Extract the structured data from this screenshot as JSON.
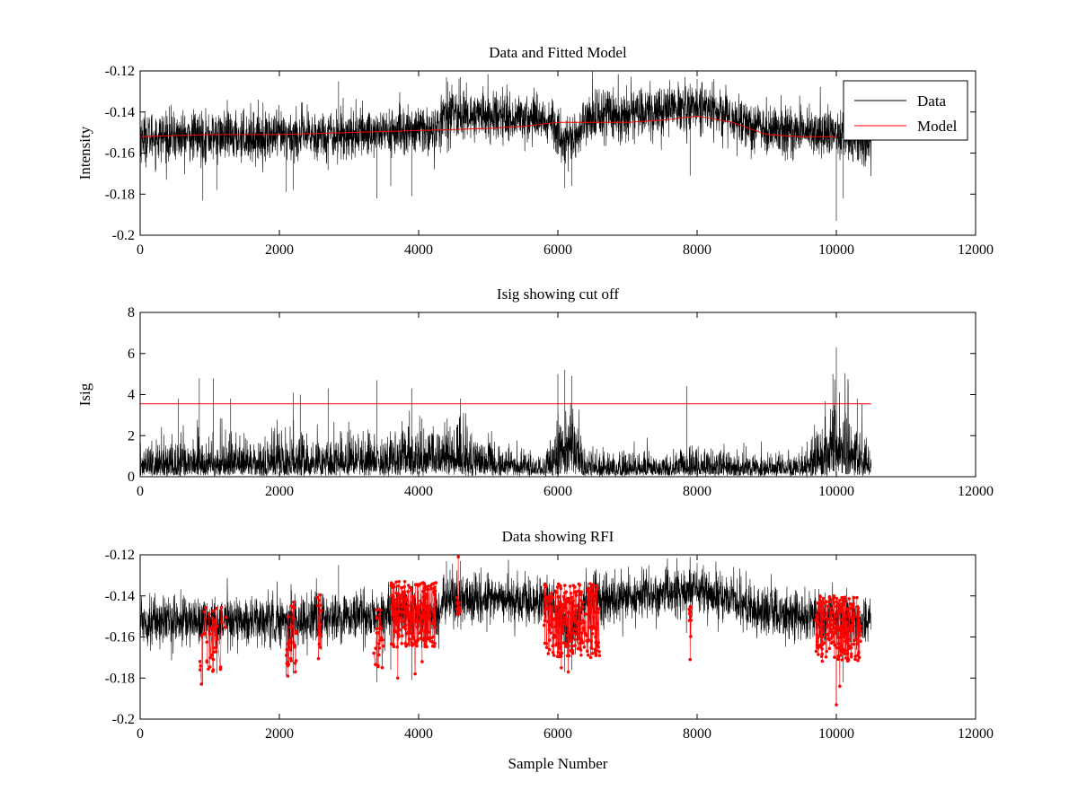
{
  "chart_data": [
    {
      "type": "line",
      "title": "Data and Fitted Model",
      "xlabel": "",
      "ylabel": "Intensity",
      "xlim": [
        0,
        12000
      ],
      "ylim": [
        -0.2,
        -0.12
      ],
      "xticks": [
        0,
        2000,
        4000,
        6000,
        8000,
        10000,
        12000
      ],
      "yticks": [
        -0.2,
        -0.18,
        -0.16,
        -0.14,
        -0.12
      ],
      "xtick_labels": [
        "0",
        "2000",
        "4000",
        "6000",
        "8000",
        "10000",
        "12000"
      ],
      "ytick_labels": [
        "-0.2",
        "-0.18",
        "-0.16",
        "-0.14",
        "-0.12"
      ],
      "legend": {
        "position": "top-right",
        "entries": [
          "Data",
          "Model"
        ]
      },
      "series": [
        {
          "name": "Data",
          "color": "#000000",
          "kind": "noisy",
          "x_range": [
            0,
            10500
          ],
          "baseline": [
            [
              0,
              -0.152
            ],
            [
              2000,
              -0.152
            ],
            [
              4000,
              -0.149
            ],
            [
              4300,
              -0.149
            ],
            [
              4350,
              -0.141
            ],
            [
              5800,
              -0.143
            ],
            [
              6000,
              -0.147
            ],
            [
              6100,
              -0.156
            ],
            [
              6250,
              -0.154
            ],
            [
              6400,
              -0.142
            ],
            [
              7000,
              -0.141
            ],
            [
              8000,
              -0.137
            ],
            [
              9000,
              -0.148
            ],
            [
              10500,
              -0.153
            ]
          ],
          "noise": 0.006,
          "spikes": [
            [
              900,
              -0.183
            ],
            [
              1100,
              -0.178
            ],
            [
              2100,
              -0.179
            ],
            [
              2200,
              -0.178
            ],
            [
              2850,
              -0.125
            ],
            [
              3400,
              -0.182
            ],
            [
              3600,
              -0.176
            ],
            [
              3900,
              -0.181
            ],
            [
              4400,
              -0.123
            ],
            [
              4600,
              -0.123
            ],
            [
              6100,
              -0.177
            ],
            [
              6200,
              -0.176
            ],
            [
              7900,
              -0.171
            ],
            [
              8000,
              -0.124
            ],
            [
              10000,
              -0.193
            ],
            [
              10100,
              -0.182
            ]
          ]
        },
        {
          "name": "Model",
          "color": "#ff0000",
          "kind": "line",
          "x": [
            0,
            1000,
            2000,
            3000,
            4000,
            5000,
            5500,
            6000,
            6500,
            7000,
            7500,
            8000,
            8500,
            9000,
            9500,
            10000
          ],
          "y": [
            -0.152,
            -0.151,
            -0.151,
            -0.15,
            -0.149,
            -0.148,
            -0.147,
            -0.145,
            -0.145,
            -0.145,
            -0.144,
            -0.142,
            -0.145,
            -0.151,
            -0.152,
            -0.152
          ]
        }
      ]
    },
    {
      "type": "line",
      "title": "Isig showing cut off",
      "xlabel": "",
      "ylabel": "Isig",
      "xlim": [
        0,
        12000
      ],
      "ylim": [
        0,
        8
      ],
      "xticks": [
        0,
        2000,
        4000,
        6000,
        8000,
        10000,
        12000
      ],
      "yticks": [
        0,
        2,
        4,
        6,
        8
      ],
      "xtick_labels": [
        "0",
        "2000",
        "4000",
        "6000",
        "8000",
        "10000",
        "12000"
      ],
      "ytick_labels": [
        "0",
        "2",
        "4",
        "6",
        "8"
      ],
      "series": [
        {
          "name": "Isig",
          "color": "#000000",
          "kind": "noisy-positive",
          "x_range": [
            0,
            10500
          ],
          "level": [
            [
              0,
              0.8
            ],
            [
              1000,
              1.0
            ],
            [
              3000,
              1.0
            ],
            [
              4500,
              1.4
            ],
            [
              5000,
              1.0
            ],
            [
              5800,
              0.6
            ],
            [
              6000,
              2.0
            ],
            [
              6200,
              2.0
            ],
            [
              6400,
              0.6
            ],
            [
              8000,
              0.7
            ],
            [
              9500,
              0.6
            ],
            [
              9900,
              1.8
            ],
            [
              10100,
              1.8
            ],
            [
              10500,
              0.7
            ]
          ],
          "spikes": [
            [
              550,
              3.8
            ],
            [
              850,
              4.8
            ],
            [
              1050,
              4.8
            ],
            [
              1300,
              3.8
            ],
            [
              2200,
              4.1
            ],
            [
              2300,
              4.0
            ],
            [
              2700,
              4.3
            ],
            [
              3400,
              4.7
            ],
            [
              3900,
              4.3
            ],
            [
              4600,
              3.8
            ],
            [
              6000,
              5.0
            ],
            [
              6100,
              5.2
            ],
            [
              6200,
              4.9
            ],
            [
              7850,
              4.4
            ],
            [
              9950,
              5.0
            ],
            [
              10000,
              6.3
            ],
            [
              10300,
              3.8
            ]
          ]
        },
        {
          "name": "Cut off",
          "color": "#ff0000",
          "kind": "line",
          "x": [
            0,
            10500
          ],
          "y": [
            3.55,
            3.55
          ]
        }
      ]
    },
    {
      "type": "scatter",
      "title": "Data showing RFI",
      "xlabel": "Sample Number",
      "ylabel": "",
      "xlim": [
        0,
        12000
      ],
      "ylim": [
        -0.2,
        -0.12
      ],
      "xticks": [
        0,
        2000,
        4000,
        6000,
        8000,
        10000,
        12000
      ],
      "yticks": [
        -0.2,
        -0.18,
        -0.16,
        -0.14,
        -0.12
      ],
      "xtick_labels": [
        "0",
        "2000",
        "4000",
        "6000",
        "8000",
        "10000",
        "12000"
      ],
      "ytick_labels": [
        "-0.2",
        "-0.18",
        "-0.16",
        "-0.14",
        "-0.12"
      ],
      "series": [
        {
          "name": "Data",
          "color": "#000000",
          "kind": "noisy",
          "x_range": [
            0,
            10500
          ],
          "baseline": [
            [
              0,
              -0.152
            ],
            [
              2000,
              -0.152
            ],
            [
              4000,
              -0.149
            ],
            [
              4300,
              -0.149
            ],
            [
              4350,
              -0.141
            ],
            [
              5800,
              -0.143
            ],
            [
              6000,
              -0.147
            ],
            [
              6100,
              -0.156
            ],
            [
              6250,
              -0.154
            ],
            [
              6400,
              -0.142
            ],
            [
              7000,
              -0.141
            ],
            [
              8000,
              -0.137
            ],
            [
              9000,
              -0.148
            ],
            [
              10500,
              -0.153
            ]
          ],
          "noise": 0.006,
          "spikes": [
            [
              900,
              -0.183
            ],
            [
              1100,
              -0.178
            ],
            [
              2100,
              -0.179
            ],
            [
              2200,
              -0.178
            ],
            [
              2850,
              -0.125
            ],
            [
              3400,
              -0.182
            ],
            [
              3600,
              -0.176
            ],
            [
              3900,
              -0.181
            ],
            [
              4400,
              -0.123
            ],
            [
              4600,
              -0.123
            ],
            [
              6100,
              -0.177
            ],
            [
              6200,
              -0.176
            ],
            [
              7900,
              -0.171
            ],
            [
              8000,
              -0.124
            ],
            [
              10000,
              -0.193
            ],
            [
              10100,
              -0.182
            ]
          ]
        },
        {
          "name": "RFI",
          "color": "#ff0000",
          "kind": "markers",
          "clusters": [
            {
              "x": [
                850,
                1250
              ],
              "y": [
                -0.177,
                -0.145
              ],
              "count": 40,
              "extremes": [
                [
                  880,
                  -0.183
                ],
                [
                  1050,
                  -0.176
                ]
              ]
            },
            {
              "x": [
                2100,
                2250
              ],
              "y": [
                -0.178,
                -0.142
              ],
              "count": 30,
              "extremes": [
                [
                  2120,
                  -0.179
                ],
                [
                  2230,
                  -0.177
                ]
              ]
            },
            {
              "x": [
                2550,
                2600
              ],
              "y": [
                -0.172,
                -0.139
              ],
              "count": 14,
              "extremes": []
            },
            {
              "x": [
                3350,
                3500
              ],
              "y": [
                -0.176,
                -0.146
              ],
              "count": 22,
              "extremes": [
                [
                  3420,
                  -0.174
                ]
              ]
            },
            {
              "x": [
                3600,
                4250
              ],
              "y": [
                -0.165,
                -0.133
              ],
              "count": 220,
              "extremes": [
                [
                  3700,
                  -0.18
                ],
                [
                  3950,
                  -0.178
                ],
                [
                  4050,
                  -0.172
                ]
              ]
            },
            {
              "x": [
                4550,
                4600
              ],
              "y": [
                -0.15,
                -0.14
              ],
              "count": 10,
              "extremes": [
                [
                  4570,
                  -0.121
                ]
              ]
            },
            {
              "x": [
                5800,
                6600
              ],
              "y": [
                -0.17,
                -0.134
              ],
              "count": 260,
              "extremes": [
                [
                  6050,
                  -0.175
                ],
                [
                  6150,
                  -0.177
                ]
              ]
            },
            {
              "x": [
                7880,
                7920
              ],
              "y": [
                -0.16,
                -0.144
              ],
              "count": 10,
              "extremes": [
                [
                  7900,
                  -0.171
                ]
              ]
            },
            {
              "x": [
                9700,
                10350
              ],
              "y": [
                -0.172,
                -0.14
              ],
              "count": 220,
              "extremes": [
                [
                  10000,
                  -0.193
                ],
                [
                  10050,
                  -0.184
                ]
              ]
            }
          ]
        }
      ]
    }
  ]
}
